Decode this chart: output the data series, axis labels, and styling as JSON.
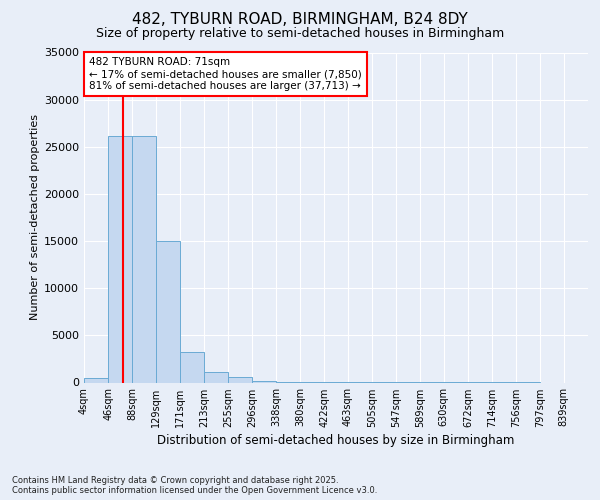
{
  "title": "482, TYBURN ROAD, BIRMINGHAM, B24 8DY",
  "subtitle": "Size of property relative to semi-detached houses in Birmingham",
  "xlabel": "Distribution of semi-detached houses by size in Birmingham",
  "ylabel": "Number of semi-detached properties",
  "footer1": "Contains HM Land Registry data © Crown copyright and database right 2025.",
  "footer2": "Contains public sector information licensed under the Open Government Licence v3.0.",
  "annotation_title": "482 TYBURN ROAD: 71sqm",
  "annotation_line1": "← 17% of semi-detached houses are smaller (7,850)",
  "annotation_line2": "81% of semi-detached houses are larger (37,713) →",
  "property_size": 71,
  "bar_color": "#c5d8f0",
  "bar_edge_color": "#6aaad4",
  "vline_color": "red",
  "background_color": "#e8eef8",
  "annotation_box_color": "white",
  "annotation_box_edge": "red",
  "categories": [
    "4sqm",
    "46sqm",
    "88sqm",
    "129sqm",
    "171sqm",
    "213sqm",
    "255sqm",
    "296sqm",
    "338sqm",
    "380sqm",
    "422sqm",
    "463sqm",
    "505sqm",
    "547sqm",
    "589sqm",
    "630sqm",
    "672sqm",
    "714sqm",
    "756sqm",
    "797sqm",
    "839sqm"
  ],
  "bin_edges": [
    4,
    46,
    88,
    129,
    171,
    213,
    255,
    296,
    338,
    380,
    422,
    463,
    505,
    547,
    589,
    630,
    672,
    714,
    756,
    797,
    839
  ],
  "bar_heights": [
    430,
    26100,
    26100,
    15000,
    3200,
    1100,
    600,
    200,
    100,
    60,
    30,
    15,
    8,
    5,
    3,
    2,
    1,
    1,
    1,
    0
  ],
  "ylim": [
    0,
    35000
  ],
  "yticks": [
    0,
    5000,
    10000,
    15000,
    20000,
    25000,
    30000,
    35000
  ]
}
